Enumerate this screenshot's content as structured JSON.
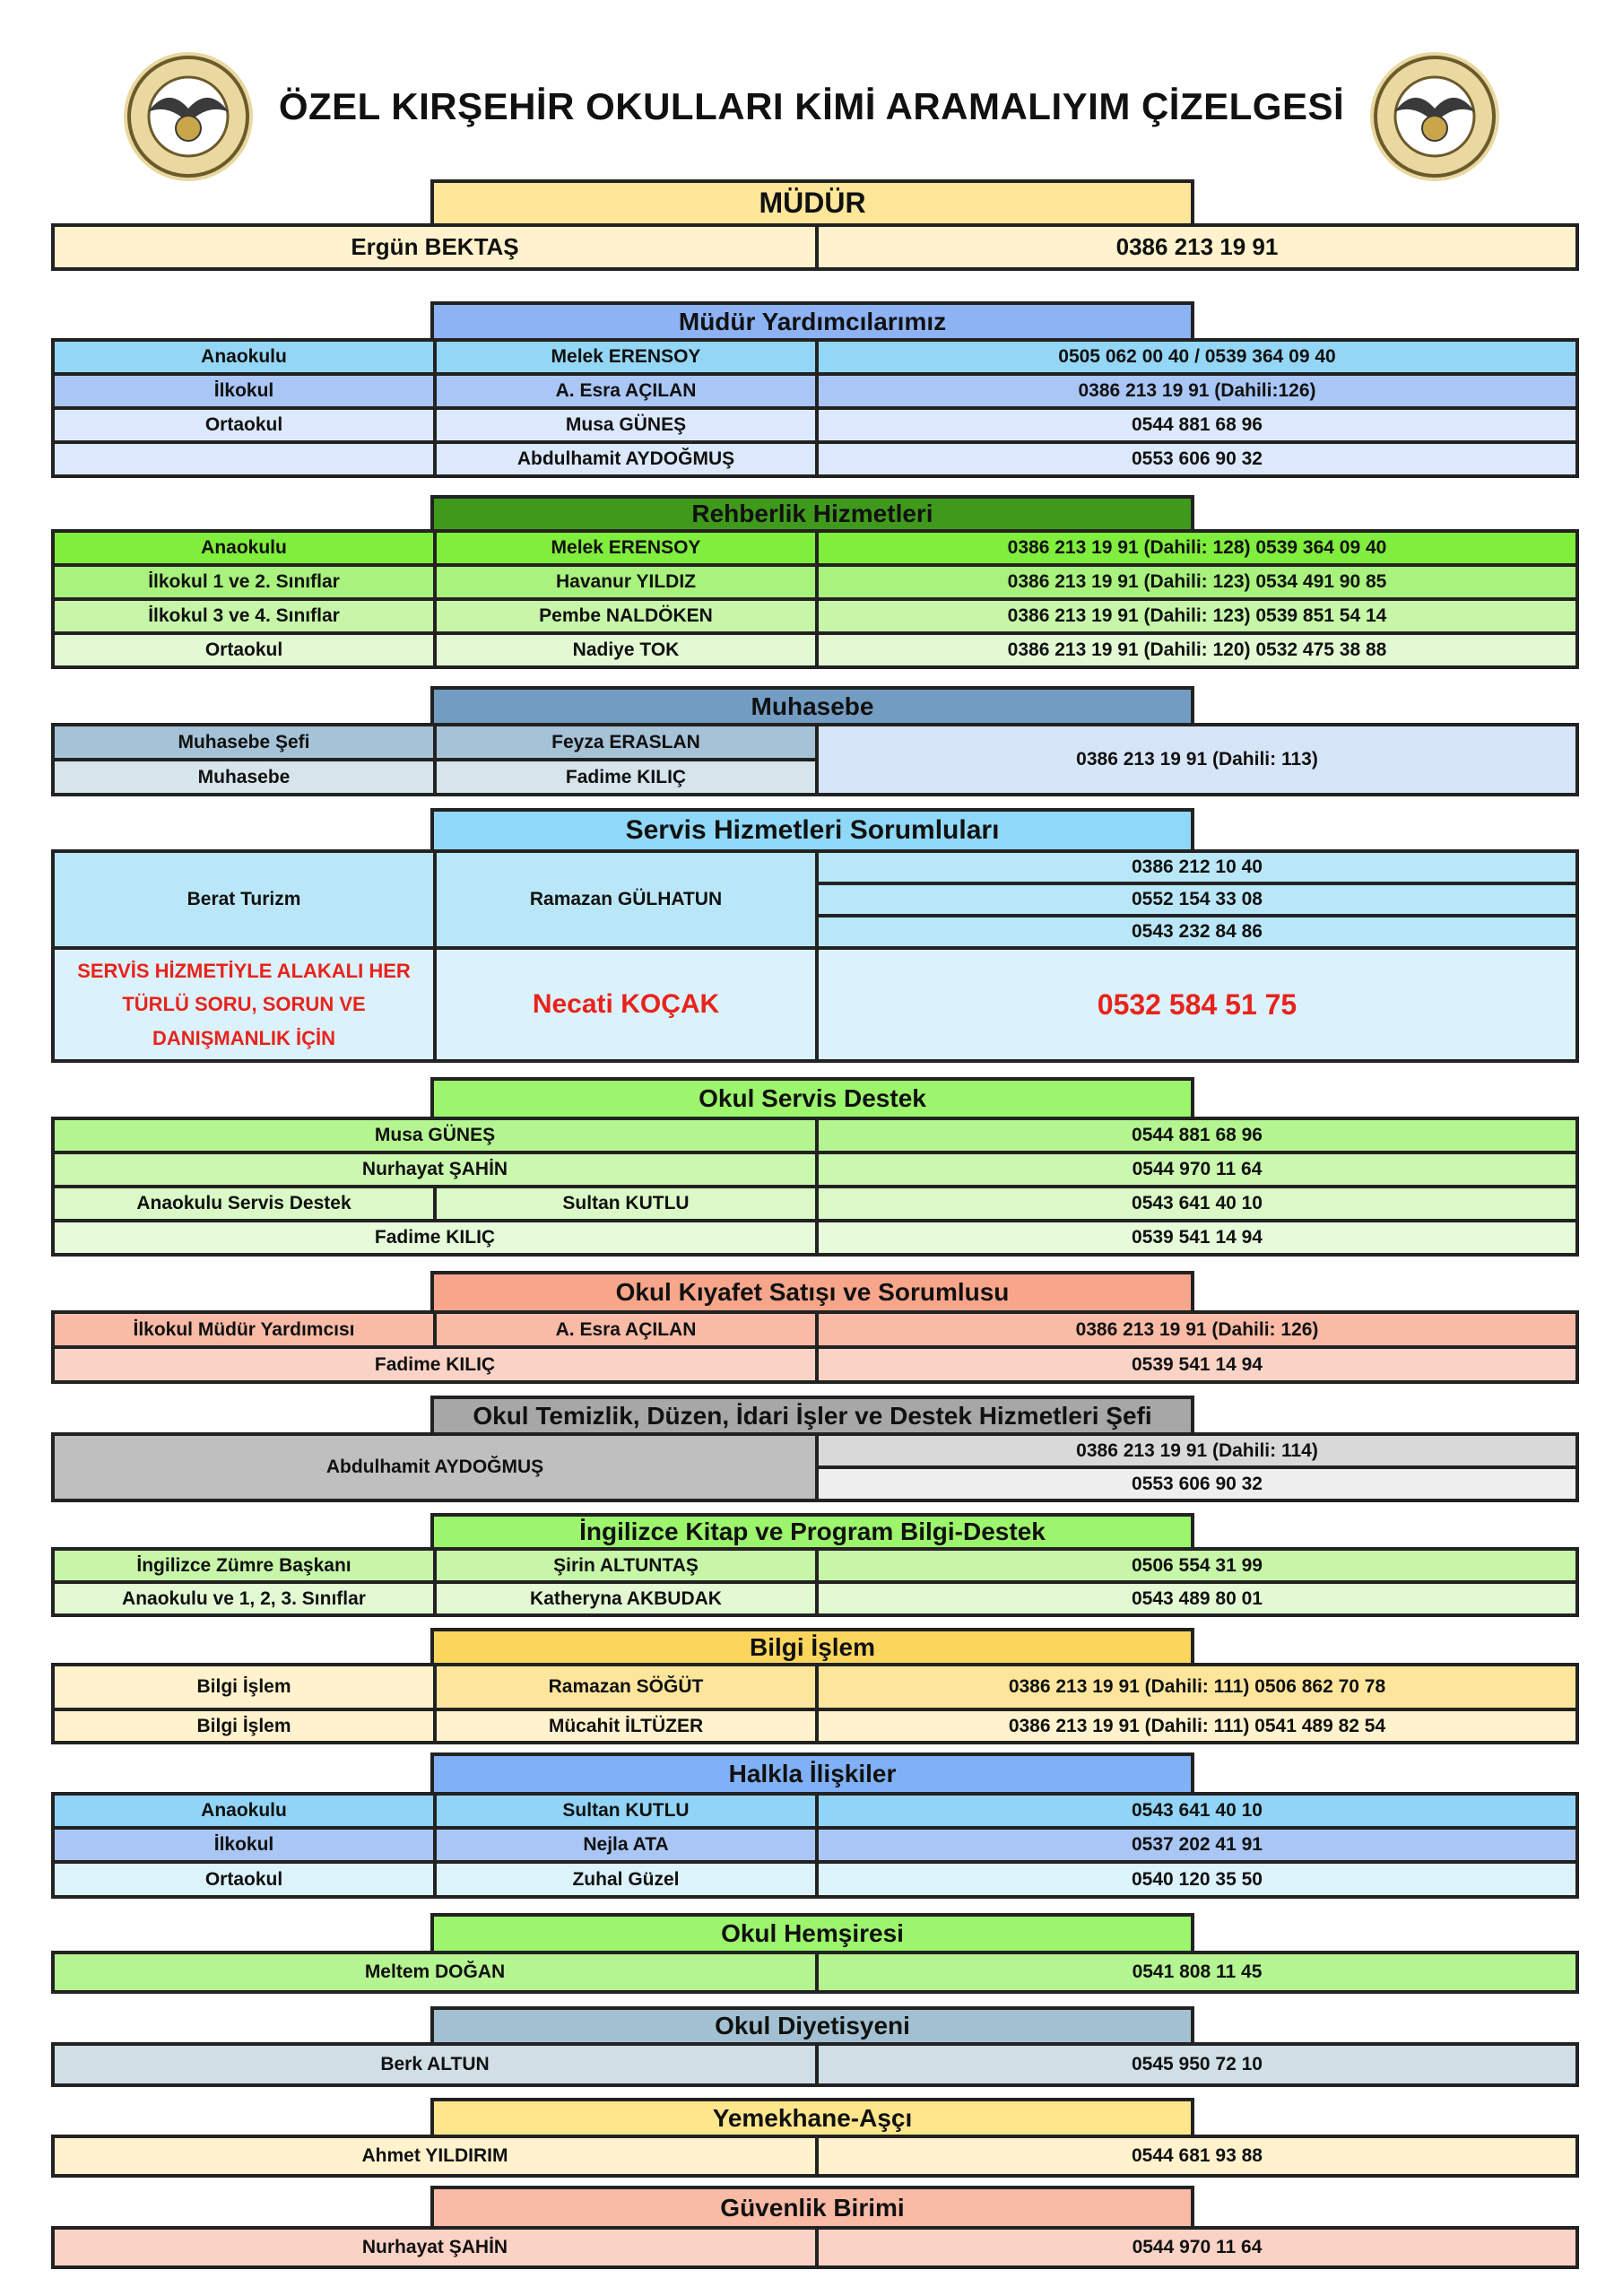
{
  "header": {
    "title": "ÖZEL KIRŞEHİR OKULLARI KİMİ ARAMALIYIM ÇİZELGESİ"
  },
  "sections": [
    {
      "title": "MÜDÜR",
      "rows": [
        [
          "Ergün BEKTAŞ",
          "0386 213 19 91"
        ]
      ]
    },
    {
      "title": "Müdür Yardımcılarımız",
      "rows": [
        [
          "Anaokulu",
          "Melek ERENSOY",
          "0505 062 00 40 / 0539 364 09 40"
        ],
        [
          "İlkokul",
          "A. Esra AÇILAN",
          "0386 213 19 91 (Dahili:126)"
        ],
        [
          "Ortaokul",
          "Musa GÜNEŞ",
          "0544 881 68 96"
        ],
        [
          "Abdulhamit AYDOĞMUŞ",
          "0553 606 90 32"
        ]
      ]
    },
    {
      "title": "Rehberlik Hizmetleri",
      "rows": [
        [
          "Anaokulu",
          "Melek ERENSOY",
          "0386 213 19 91 (Dahili: 128) 0539 364 09 40"
        ],
        [
          "İlkokul 1 ve 2. Sınıflar",
          "Havanur YILDIZ",
          "0386 213 19 91 (Dahili: 123) 0534 491 90 85"
        ],
        [
          "İlkokul 3 ve 4. Sınıflar",
          "Pembe NALDÖKEN",
          "0386 213 19 91 (Dahili: 123) 0539 851 54 14"
        ],
        [
          "Ortaokul",
          "Nadiye TOK",
          "0386 213 19 91 (Dahili: 120) 0532 475 38 88"
        ]
      ]
    },
    {
      "title": "Muhasebe",
      "rows": [
        [
          "Muhasebe Şefi",
          "Feyza ERASLAN"
        ],
        [
          "Muhasebe",
          "Fadime KILIÇ"
        ]
      ],
      "phone": "0386 213 19 91 (Dahili: 113)"
    },
    {
      "title": "Servis Hizmetleri Sorumluları",
      "rows": [
        [
          "Berat Turizm",
          "Ramazan GÜLHATUN",
          "0386 212 10 40",
          "0552 154 33 08",
          "0543 232 84 86"
        ],
        [
          "SERVİS HİZMETİYLE ALAKALI HER TÜRLÜ SORU, SORUN VE DANIŞMANLIK İÇİN",
          "Necati KOÇAK",
          "0532 584 51 75"
        ]
      ]
    },
    {
      "title": "Okul Servis Destek",
      "rows": [
        [
          "Musa GÜNEŞ",
          "0544 881 68 96"
        ],
        [
          "Nurhayat ŞAHİN",
          "0544 970 11 64"
        ],
        [
          "Anaokulu Servis Destek",
          "Sultan KUTLU",
          "0543 641 40 10"
        ],
        [
          "Fadime KILIÇ",
          "0539 541 14 94"
        ]
      ]
    },
    {
      "title": "Okul Kıyafet Satışı ve Sorumlusu",
      "rows": [
        [
          "İlkokul Müdür Yardımcısı",
          "A. Esra AÇILAN",
          "0386 213 19 91 (Dahili: 126)"
        ],
        [
          "Fadime KILIÇ",
          "0539 541 14 94"
        ]
      ]
    },
    {
      "title": "Okul Temizlik, Düzen, İdari İşler ve Destek Hizmetleri Şefi",
      "rows": [
        [
          "Abdulhamit AYDOĞMUŞ",
          "0386 213 19 91 (Dahili: 114)",
          "0553 606 90 32"
        ]
      ]
    },
    {
      "title": "İngilizce Kitap ve Program Bilgi-Destek",
      "rows": [
        [
          "İngilizce Zümre Başkanı",
          "Şirin ALTUNTAŞ",
          "0506 554 31 99"
        ],
        [
          "Anaokulu ve 1, 2, 3. Sınıflar",
          "Katheryna AKBUDAK",
          "0543 489 80 01"
        ]
      ]
    },
    {
      "title": "Bilgi İşlem",
      "rows": [
        [
          "Bilgi İşlem",
          "Ramazan SÖĞÜT",
          "0386 213 19 91 (Dahili: 111) 0506 862 70 78"
        ],
        [
          "Bilgi İşlem",
          "Mücahit İLTÜZER",
          "0386 213 19 91 (Dahili: 111) 0541 489 82 54"
        ]
      ]
    },
    {
      "title": "Halkla İlişkiler",
      "rows": [
        [
          "Anaokulu",
          "Sultan KUTLU",
          "0543 641 40 10"
        ],
        [
          "İlkokul",
          "Nejla ATA",
          "0537 202 41 91"
        ],
        [
          "Ortaokul",
          "Zuhal Güzel",
          "0540 120 35 50"
        ]
      ]
    },
    {
      "title": "Okul Hemşiresi",
      "rows": [
        [
          "Meltem DOĞAN",
          "0541 808 11 45"
        ]
      ]
    },
    {
      "title": "Okul Diyetisyeni",
      "rows": [
        [
          "Berk ALTUN",
          "0545 950 72 10"
        ]
      ]
    },
    {
      "title": "Yemekhane-Aşçı",
      "rows": [
        [
          "Ahmet YILDIRIM",
          "0544 681 93 88"
        ]
      ]
    },
    {
      "title": "Güvenlik Birimi",
      "rows": [
        [
          "Nurhayat ŞAHİN",
          "0544 970 11 64"
        ]
      ]
    }
  ]
}
